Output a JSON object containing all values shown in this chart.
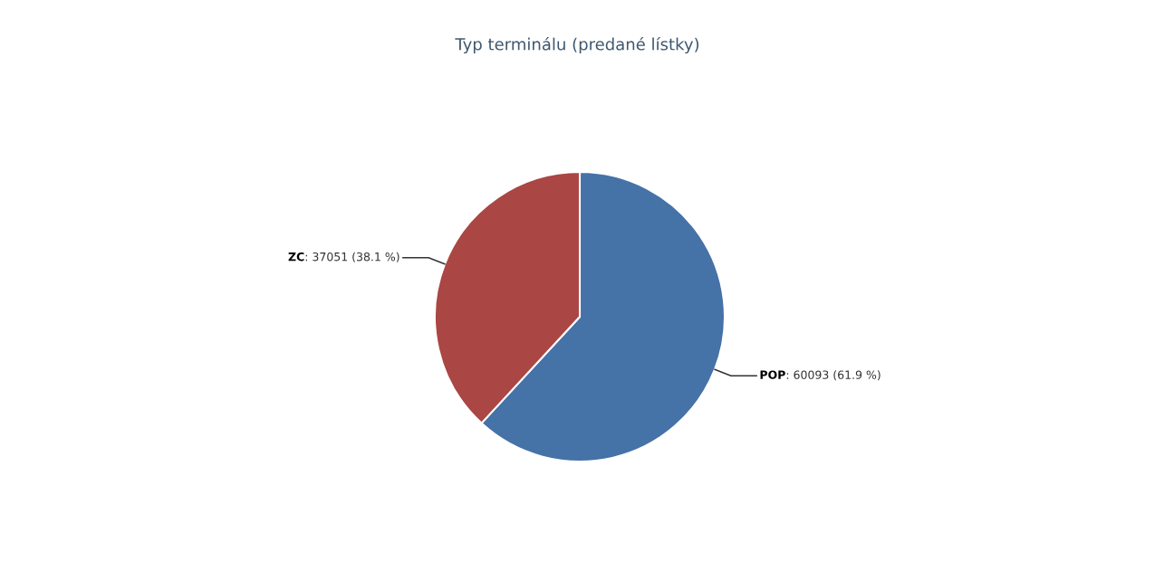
{
  "chart_data": {
    "type": "pie",
    "title": "Typ terminálu (predané lístky)",
    "categories": [
      "POP",
      "ZC"
    ],
    "values": [
      60093,
      37051
    ],
    "colors": [
      "#4572a7",
      "#aa4643"
    ],
    "value_labels": [
      ": 60093 (61.9 %)",
      ": 37051 (38.1 %)"
    ]
  }
}
